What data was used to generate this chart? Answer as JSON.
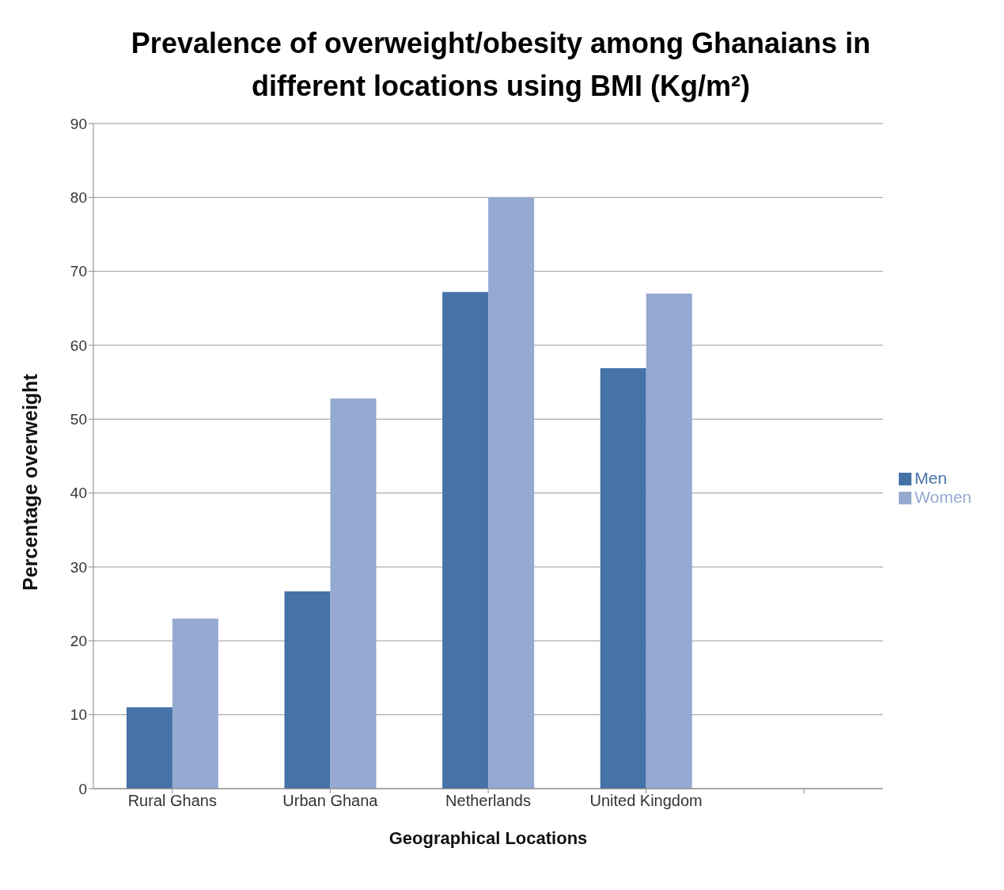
{
  "chart_data": {
    "type": "bar",
    "title": "Prevalence of overweight/obesity among Ghanaians in different locations using BMI (Kg/m²)",
    "xlabel": "Geographical Locations",
    "ylabel": "Percentage overweight",
    "categories": [
      "Rural Ghans",
      "Urban Ghana",
      "Netherlands",
      "United Kingdom",
      null
    ],
    "series": [
      {
        "name": "Men",
        "color": "#4572a7",
        "values": [
          11,
          26.7,
          67.2,
          56.9,
          null
        ]
      },
      {
        "name": "Women",
        "color": "#95a9d1",
        "values": [
          23,
          52.8,
          80,
          67,
          null
        ]
      }
    ],
    "ylim": [
      0,
      90
    ],
    "yticks": [
      0,
      10,
      20,
      30,
      40,
      50,
      60,
      70,
      80,
      90
    ],
    "grid": "y",
    "legend": "right"
  }
}
